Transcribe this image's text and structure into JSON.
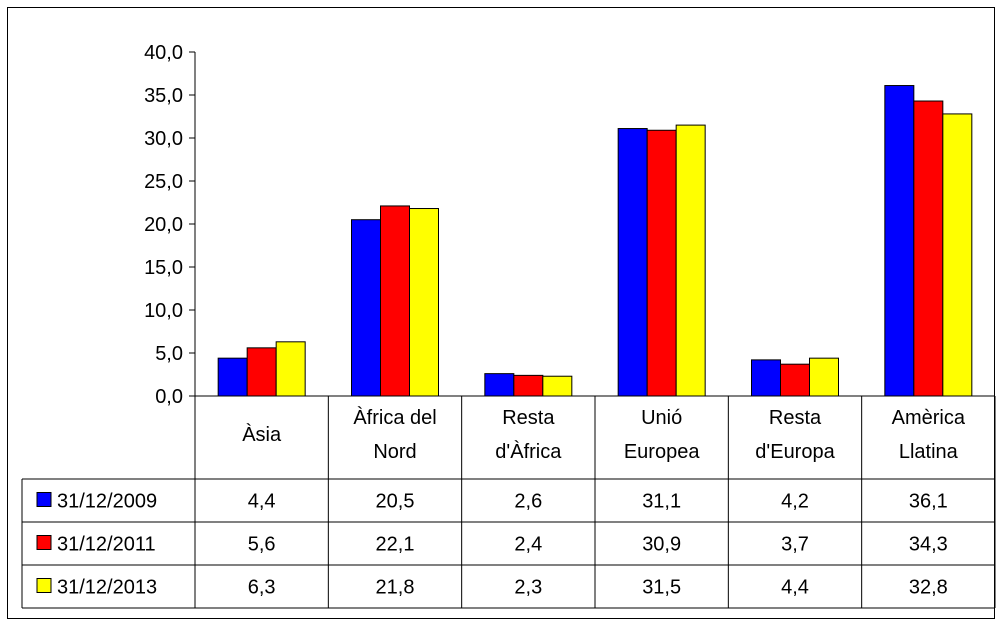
{
  "chart_data": {
    "type": "bar",
    "title": "",
    "xlabel": "",
    "ylabel": "",
    "ylim": [
      0,
      40
    ],
    "yticks": [
      "0,0",
      "5,0",
      "10,0",
      "15,0",
      "20,0",
      "25,0",
      "30,0",
      "35,0",
      "40,0"
    ],
    "grid": false,
    "legend": "data-table",
    "categories": [
      [
        "Àsia"
      ],
      [
        "Àfrica del",
        "Nord"
      ],
      [
        "Resta",
        "d'Àfrica"
      ],
      [
        "Unió",
        "Europea"
      ],
      [
        "Resta",
        "d'Europa"
      ],
      [
        "Amèrica",
        "Llatina"
      ]
    ],
    "series": [
      {
        "name": "31/12/2009",
        "color": "#0000ff",
        "values": [
          4.4,
          20.5,
          2.6,
          31.1,
          4.2,
          36.1
        ],
        "labels": [
          "4,4",
          "20,5",
          "2,6",
          "31,1",
          "4,2",
          "36,1"
        ]
      },
      {
        "name": "31/12/2011",
        "color": "#ff0000",
        "values": [
          5.6,
          22.1,
          2.4,
          30.9,
          3.7,
          34.3
        ],
        "labels": [
          "5,6",
          "22,1",
          "2,4",
          "30,9",
          "3,7",
          "34,3"
        ]
      },
      {
        "name": "31/12/2013",
        "color": "#ffff00",
        "values": [
          6.3,
          21.8,
          2.3,
          31.5,
          4.4,
          32.8
        ],
        "labels": [
          "6,3",
          "21,8",
          "2,3",
          "31,5",
          "4,4",
          "32,8"
        ]
      }
    ]
  }
}
